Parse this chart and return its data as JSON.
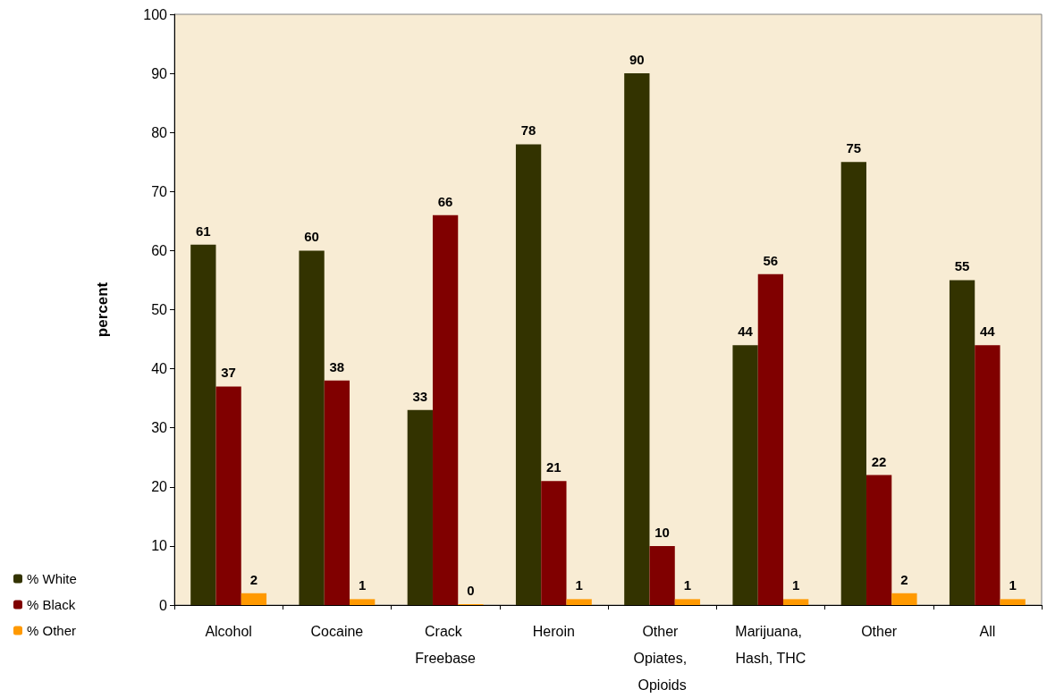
{
  "chart_data": {
    "type": "bar",
    "ylabel": "percent",
    "categories": [
      "Alcohol",
      "Cocaine",
      "Crack Freebase",
      "Heroin",
      "Other Opiates, Opioids",
      "Marijuana, Hash, THC",
      "Other",
      "All"
    ],
    "series": [
      {
        "name": "% White",
        "color": "#333300",
        "values": [
          61,
          60,
          33,
          78,
          90,
          44,
          75,
          55
        ]
      },
      {
        "name": "% Black",
        "color": "#800000",
        "values": [
          37,
          38,
          66,
          21,
          10,
          56,
          22,
          44
        ]
      },
      {
        "name": "% Other",
        "color": "#ff9900",
        "values": [
          2,
          1,
          0,
          1,
          1,
          1,
          2,
          1
        ]
      }
    ],
    "ylim": [
      0,
      100
    ],
    "yticks": [
      0,
      10,
      20,
      30,
      40,
      50,
      60,
      70,
      80,
      90,
      100
    ],
    "data_labels": true,
    "grid": false,
    "legend": "bottom left"
  }
}
